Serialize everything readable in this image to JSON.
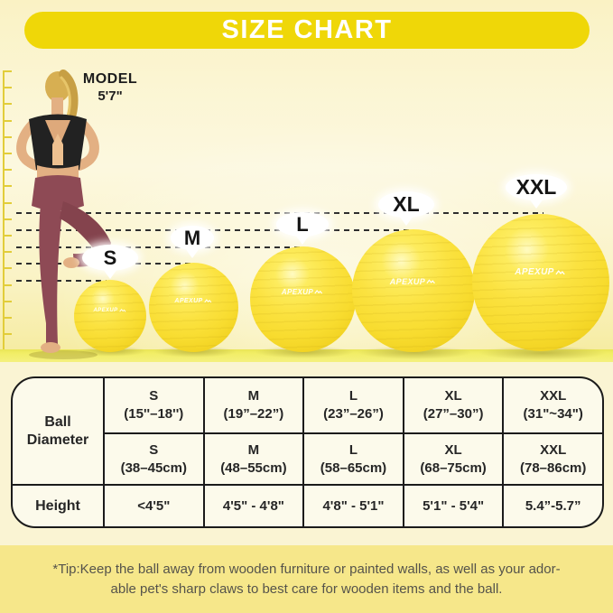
{
  "banner": {
    "title": "SIZE CHART"
  },
  "model": {
    "line1": "MODEL",
    "line2": "5'7\""
  },
  "brand": {
    "name": "APEXUP"
  },
  "balls": [
    {
      "label": "S"
    },
    {
      "label": "M"
    },
    {
      "label": "L"
    },
    {
      "label": "XL"
    },
    {
      "label": "XXL"
    }
  ],
  "table": {
    "header_diameter": "Ball Diameter",
    "header_height": "Height",
    "inch_row": [
      {
        "size": "S",
        "range": "(15''–18'')"
      },
      {
        "size": "M",
        "range": "(19”–22”)"
      },
      {
        "size": "L",
        "range": "(23”–26”)"
      },
      {
        "size": "XL",
        "range": "(27”–30”)"
      },
      {
        "size": "XXL",
        "range": "(31\"~34\")"
      }
    ],
    "cm_row": [
      {
        "size": "S",
        "range": "(38–45cm)"
      },
      {
        "size": "M",
        "range": "(48–55cm)"
      },
      {
        "size": "L",
        "range": "(58–65cm)"
      },
      {
        "size": "XL",
        "range": "(68–75cm)"
      },
      {
        "size": "XXL",
        "range": "(78–86cm)"
      }
    ],
    "height_row": [
      "<4'5\"",
      "4'5\" - 4'8\"",
      "4'8\" - 5'1\"",
      "5'1\" - 5'4\"",
      "5.4”-5.7”"
    ]
  },
  "tip": {
    "line1": "*Tip:Keep the ball away from wooden furniture or painted walls, as well as your ador-",
    "line2": "able pet's sharp claws to best care for wooden items and the ball."
  },
  "colors": {
    "banner_yellow": "#EFD708",
    "ball_yellow": "#FBE23C",
    "floor_yellow": "#F1EC63",
    "footer_band": "#F6E78A"
  }
}
